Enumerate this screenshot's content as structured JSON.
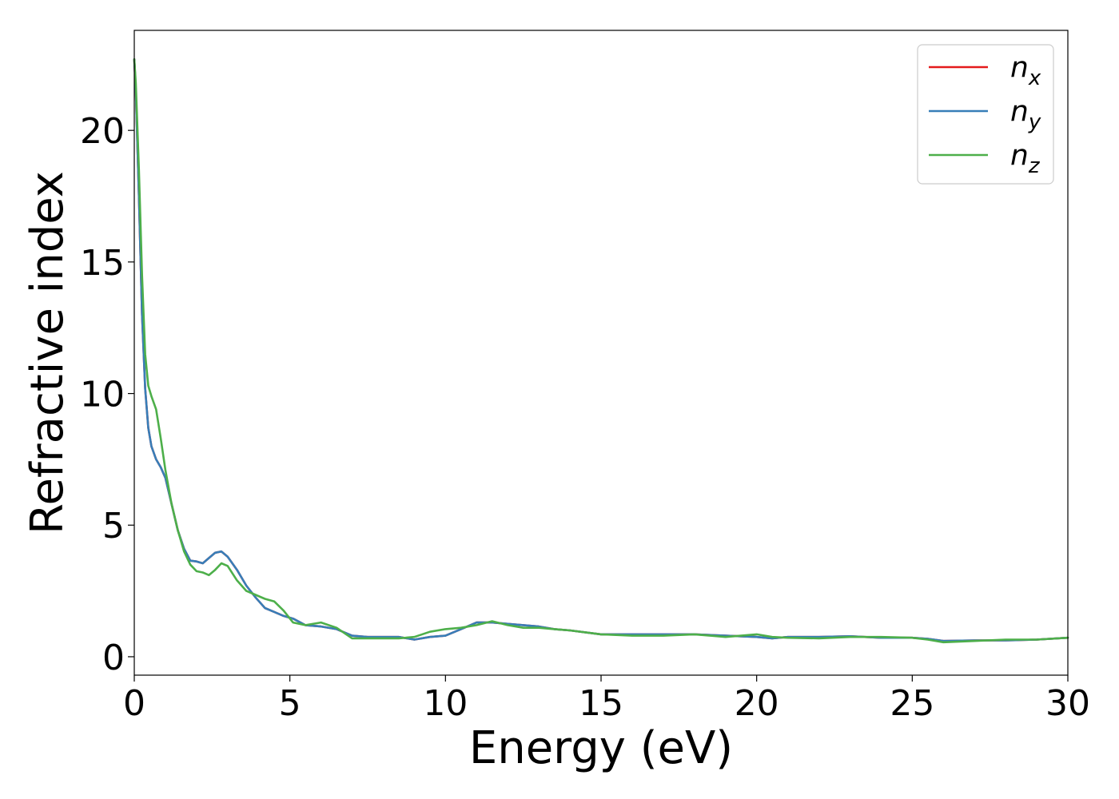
{
  "chart_data": {
    "type": "line",
    "xlabel": "Energy (eV)",
    "ylabel": "Refractive index",
    "xlim": [
      0,
      30
    ],
    "ylim": [
      -0.7,
      23.8
    ],
    "xticks": [
      0,
      5,
      10,
      15,
      20,
      25,
      30
    ],
    "xtick_labels": [
      "0",
      "5",
      "10",
      "15",
      "20",
      "25",
      "30"
    ],
    "yticks": [
      0,
      5,
      10,
      15,
      20
    ],
    "ytick_labels": [
      "0",
      "5",
      "10",
      "15",
      "20"
    ],
    "grid": false,
    "legend_position": "top-right",
    "colors": {
      "n_x": "#e41a1c",
      "n_y": "#377eb8",
      "n_z": "#4daf4a"
    },
    "series": [
      {
        "name": "n_x",
        "legend_base": "n",
        "legend_sub": "x",
        "color": "#e41a1c",
        "x": [
          0,
          0.05,
          0.15,
          0.25,
          0.35,
          0.45,
          0.55,
          0.7,
          0.85,
          1.0,
          1.2,
          1.4,
          1.6,
          1.8,
          2.0,
          2.2,
          2.4,
          2.6,
          2.8,
          3.0,
          3.3,
          3.6,
          3.9,
          4.2,
          4.5,
          4.8,
          5.1,
          5.5,
          6.0,
          6.5,
          7.0,
          7.5,
          8.0,
          8.5,
          9.0,
          9.5,
          10.0,
          10.5,
          11.0,
          11.5,
          12.0,
          12.5,
          13.0,
          13.5,
          14.0,
          15.0,
          16.0,
          17.0,
          18.0,
          19.0,
          20.0,
          20.5,
          21.0,
          22.0,
          23.0,
          24.0,
          25.0,
          25.5,
          26.0,
          27.0,
          28.0,
          29.0,
          30.0
        ],
        "y": [
          22.7,
          21.5,
          17.5,
          13.0,
          10.2,
          8.7,
          8.0,
          7.5,
          7.2,
          6.8,
          5.8,
          4.8,
          4.1,
          3.65,
          3.62,
          3.55,
          3.75,
          3.95,
          4.0,
          3.8,
          3.3,
          2.7,
          2.25,
          1.85,
          1.7,
          1.55,
          1.45,
          1.2,
          1.15,
          1.05,
          0.8,
          0.75,
          0.75,
          0.75,
          0.65,
          0.75,
          0.8,
          1.05,
          1.3,
          1.3,
          1.25,
          1.2,
          1.15,
          1.05,
          1.0,
          0.85,
          0.85,
          0.85,
          0.85,
          0.8,
          0.75,
          0.7,
          0.75,
          0.75,
          0.78,
          0.72,
          0.72,
          0.68,
          0.6,
          0.62,
          0.62,
          0.65,
          0.72
        ]
      },
      {
        "name": "n_y",
        "legend_base": "n",
        "legend_sub": "y",
        "color": "#377eb8",
        "x": [
          0,
          0.05,
          0.15,
          0.25,
          0.35,
          0.45,
          0.55,
          0.7,
          0.85,
          1.0,
          1.2,
          1.4,
          1.6,
          1.8,
          2.0,
          2.2,
          2.4,
          2.6,
          2.8,
          3.0,
          3.3,
          3.6,
          3.9,
          4.2,
          4.5,
          4.8,
          5.1,
          5.5,
          6.0,
          6.5,
          7.0,
          7.5,
          8.0,
          8.5,
          9.0,
          9.5,
          10.0,
          10.5,
          11.0,
          11.5,
          12.0,
          12.5,
          13.0,
          13.5,
          14.0,
          15.0,
          16.0,
          17.0,
          18.0,
          19.0,
          20.0,
          20.5,
          21.0,
          22.0,
          23.0,
          24.0,
          25.0,
          25.5,
          26.0,
          27.0,
          28.0,
          29.0,
          30.0
        ],
        "y": [
          22.7,
          21.5,
          17.5,
          13.0,
          10.2,
          8.7,
          8.0,
          7.5,
          7.2,
          6.8,
          5.8,
          4.8,
          4.1,
          3.65,
          3.62,
          3.55,
          3.75,
          3.95,
          4.0,
          3.8,
          3.3,
          2.7,
          2.25,
          1.85,
          1.7,
          1.55,
          1.45,
          1.2,
          1.15,
          1.05,
          0.8,
          0.75,
          0.75,
          0.75,
          0.65,
          0.75,
          0.8,
          1.05,
          1.3,
          1.3,
          1.25,
          1.2,
          1.15,
          1.05,
          1.0,
          0.85,
          0.85,
          0.85,
          0.85,
          0.8,
          0.75,
          0.7,
          0.75,
          0.75,
          0.78,
          0.72,
          0.72,
          0.68,
          0.6,
          0.62,
          0.62,
          0.65,
          0.72
        ]
      },
      {
        "name": "n_z",
        "legend_base": "n",
        "legend_sub": "z",
        "color": "#4daf4a",
        "x": [
          0,
          0.05,
          0.15,
          0.25,
          0.35,
          0.45,
          0.55,
          0.7,
          0.85,
          1.0,
          1.2,
          1.4,
          1.6,
          1.8,
          2.0,
          2.2,
          2.4,
          2.6,
          2.8,
          3.0,
          3.3,
          3.6,
          3.9,
          4.2,
          4.5,
          4.8,
          5.1,
          5.5,
          6.0,
          6.5,
          7.0,
          7.5,
          8.0,
          8.5,
          9.0,
          9.5,
          10.0,
          10.5,
          11.0,
          11.5,
          12.0,
          12.5,
          13.0,
          13.5,
          14.0,
          15.0,
          16.0,
          17.0,
          18.0,
          19.0,
          20.0,
          20.5,
          21.0,
          22.0,
          23.0,
          24.0,
          25.0,
          25.5,
          26.0,
          27.0,
          28.0,
          29.0,
          30.0
        ],
        "y": [
          22.7,
          21.8,
          18.5,
          14.5,
          11.5,
          10.3,
          9.9,
          9.4,
          8.3,
          7.1,
          5.8,
          4.8,
          4.0,
          3.5,
          3.25,
          3.2,
          3.1,
          3.3,
          3.55,
          3.45,
          2.9,
          2.5,
          2.35,
          2.2,
          2.1,
          1.75,
          1.3,
          1.2,
          1.3,
          1.1,
          0.7,
          0.7,
          0.7,
          0.7,
          0.75,
          0.95,
          1.05,
          1.1,
          1.2,
          1.35,
          1.2,
          1.1,
          1.1,
          1.05,
          1.0,
          0.85,
          0.8,
          0.8,
          0.85,
          0.75,
          0.85,
          0.75,
          0.72,
          0.7,
          0.75,
          0.75,
          0.72,
          0.65,
          0.55,
          0.6,
          0.65,
          0.65,
          0.72
        ]
      }
    ]
  }
}
